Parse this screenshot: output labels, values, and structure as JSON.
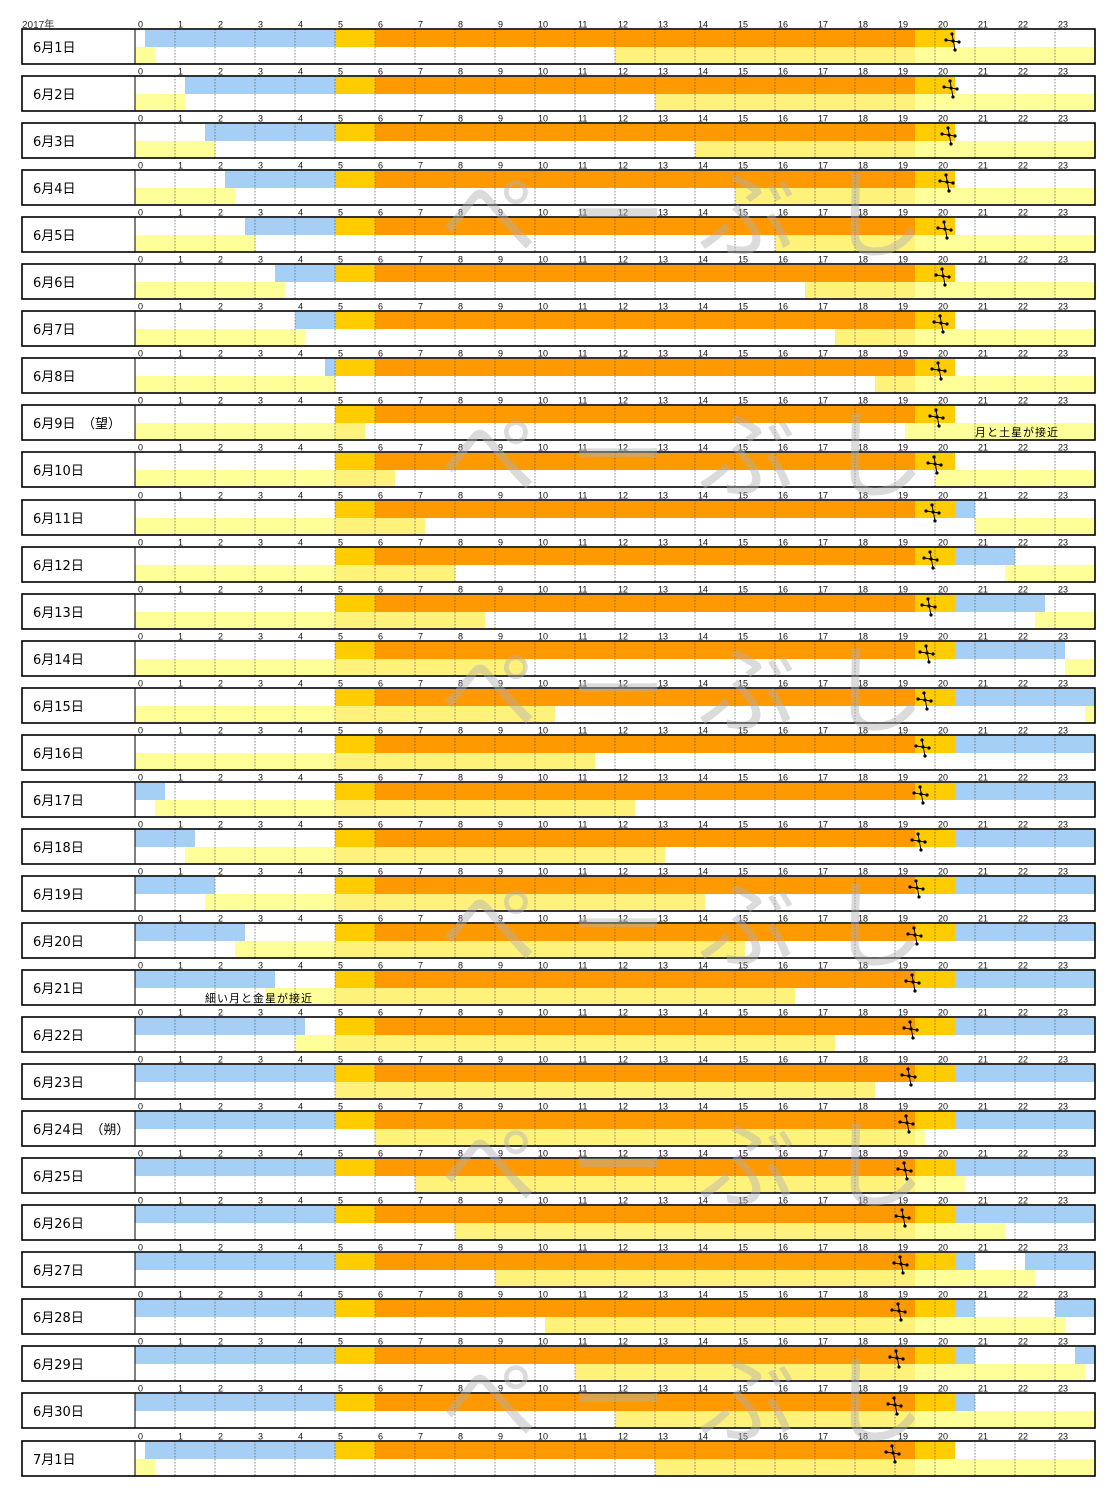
{
  "header": {
    "year_label": "2017年"
  },
  "watermark": {
    "text": "ぺ ー ぶ し"
  },
  "colors": {
    "night_blue": "#a6cff5",
    "twilight_gold": "#ffcc00",
    "day_orange": "#ff9900",
    "moon_yellow": "#ffff99",
    "frame": "#000000",
    "grid_dotted": "#555555"
  },
  "chart_data": {
    "type": "timeline",
    "title": "",
    "x_unit": "hour",
    "xlim": [
      0,
      24
    ],
    "hour_ticks": [
      "0",
      "1",
      "2",
      "3",
      "4",
      "5",
      "6",
      "7",
      "8",
      "9",
      "10",
      "11",
      "12",
      "13",
      "14",
      "15",
      "16",
      "17",
      "18",
      "19",
      "20",
      "21",
      "22",
      "23"
    ],
    "legend": [],
    "days": [
      {
        "label": "6月1日",
        "night": [
          [
            0.25,
            5
          ]
        ],
        "twilight": [
          [
            5,
            6
          ],
          [
            19.5,
            20.5
          ]
        ],
        "day": [
          [
            6,
            19.5
          ]
        ],
        "moon": [
          [
            0,
            0.5
          ],
          [
            12,
            24
          ]
        ],
        "moon_day": [
          [
            12,
            19.5
          ]
        ],
        "saturn": 20.45
      },
      {
        "label": "6月2日",
        "night": [
          [
            1.25,
            5
          ]
        ],
        "twilight": [
          [
            5,
            6
          ],
          [
            19.5,
            20.5
          ]
        ],
        "day": [
          [
            6,
            19.5
          ]
        ],
        "moon": [
          [
            0,
            1.25
          ],
          [
            13,
            24
          ]
        ],
        "moon_day": [
          [
            13,
            19.5
          ]
        ],
        "saturn": 20.4
      },
      {
        "label": "6月3日",
        "night": [
          [
            1.75,
            5
          ]
        ],
        "twilight": [
          [
            5,
            6
          ],
          [
            19.5,
            20.5
          ]
        ],
        "day": [
          [
            6,
            19.5
          ]
        ],
        "moon": [
          [
            0,
            2
          ],
          [
            14,
            24
          ]
        ],
        "moon_day": [
          [
            14,
            19.5
          ]
        ],
        "saturn": 20.35
      },
      {
        "label": "6月4日",
        "night": [
          [
            2.25,
            5
          ]
        ],
        "twilight": [
          [
            5,
            6
          ],
          [
            19.5,
            20.5
          ]
        ],
        "day": [
          [
            6,
            19.5
          ]
        ],
        "moon": [
          [
            0,
            2.5
          ],
          [
            15,
            24
          ]
        ],
        "moon_day": [
          [
            15,
            19.5
          ]
        ],
        "saturn": 20.3
      },
      {
        "label": "6月5日",
        "night": [
          [
            2.75,
            5
          ]
        ],
        "twilight": [
          [
            5,
            6
          ],
          [
            19.5,
            20.5
          ]
        ],
        "day": [
          [
            6,
            19.5
          ]
        ],
        "moon": [
          [
            0,
            3
          ],
          [
            16,
            24
          ]
        ],
        "moon_day": [
          [
            16,
            19.5
          ]
        ],
        "saturn": 20.25
      },
      {
        "label": "6月6日",
        "night": [
          [
            3.5,
            5
          ]
        ],
        "twilight": [
          [
            5,
            6
          ],
          [
            19.5,
            20.5
          ]
        ],
        "day": [
          [
            6,
            19.5
          ]
        ],
        "moon": [
          [
            0,
            3.75
          ],
          [
            16.75,
            24
          ]
        ],
        "moon_day": [
          [
            16.75,
            19.5
          ]
        ],
        "saturn": 20.2
      },
      {
        "label": "6月7日",
        "night": [
          [
            4,
            5
          ]
        ],
        "twilight": [
          [
            5,
            6
          ],
          [
            19.5,
            20.5
          ]
        ],
        "day": [
          [
            6,
            19.5
          ]
        ],
        "moon": [
          [
            0,
            4.25
          ],
          [
            17.5,
            24
          ]
        ],
        "moon_day": [
          [
            17.5,
            19.5
          ]
        ],
        "saturn": 20.15
      },
      {
        "label": "6月8日",
        "night": [
          [
            4.75,
            5
          ]
        ],
        "twilight": [
          [
            5,
            6
          ],
          [
            19.5,
            20.5
          ]
        ],
        "day": [
          [
            6,
            19.5
          ]
        ],
        "moon": [
          [
            0,
            5
          ],
          [
            18.5,
            24
          ]
        ],
        "moon_day": [
          [
            18.5,
            19.5
          ]
        ],
        "saturn": 20.1
      },
      {
        "label": "6月9日　（望）",
        "night": [],
        "twilight": [
          [
            5,
            6
          ],
          [
            19.5,
            20.5
          ]
        ],
        "day": [
          [
            6,
            19.5
          ]
        ],
        "moon": [
          [
            0,
            5.75
          ],
          [
            19.25,
            24
          ]
        ],
        "moon_day": [
          [
            5,
            5.75
          ]
        ],
        "saturn": 20.05,
        "note": "月と土星が接近"
      },
      {
        "label": "6月10日",
        "night": [],
        "twilight": [
          [
            5,
            6
          ],
          [
            19.5,
            20.5
          ]
        ],
        "day": [
          [
            6,
            19.5
          ]
        ],
        "moon": [
          [
            0,
            6.5
          ],
          [
            20,
            24
          ]
        ],
        "moon_day": [
          [
            5,
            6.5
          ]
        ],
        "saturn": 20.0
      },
      {
        "label": "6月11日",
        "night": [
          [
            20.5,
            21
          ]
        ],
        "twilight": [
          [
            5,
            6
          ],
          [
            19.5,
            20.5
          ]
        ],
        "day": [
          [
            6,
            19.5
          ]
        ],
        "moon": [
          [
            0,
            7.25
          ],
          [
            21,
            24
          ]
        ],
        "moon_day": [
          [
            5,
            7.25
          ]
        ],
        "saturn": 19.95
      },
      {
        "label": "6月12日",
        "night": [
          [
            20.5,
            22
          ]
        ],
        "twilight": [
          [
            5,
            6
          ],
          [
            19.5,
            20.5
          ]
        ],
        "day": [
          [
            6,
            19.5
          ]
        ],
        "moon": [
          [
            0,
            8
          ],
          [
            21.75,
            24
          ]
        ],
        "moon_day": [
          [
            5,
            8
          ]
        ],
        "saturn": 19.9
      },
      {
        "label": "6月13日",
        "night": [
          [
            20.5,
            22.75
          ]
        ],
        "twilight": [
          [
            5,
            6
          ],
          [
            19.5,
            20.5
          ]
        ],
        "day": [
          [
            6,
            19.5
          ]
        ],
        "moon": [
          [
            0,
            8.75
          ],
          [
            22.5,
            24
          ]
        ],
        "moon_day": [
          [
            5,
            8.75
          ]
        ],
        "saturn": 19.85
      },
      {
        "label": "6月14日",
        "night": [
          [
            20.5,
            23.25
          ]
        ],
        "twilight": [
          [
            5,
            6
          ],
          [
            19.5,
            20.5
          ]
        ],
        "day": [
          [
            6,
            19.5
          ]
        ],
        "moon": [
          [
            0,
            9.75
          ],
          [
            23.25,
            24
          ]
        ],
        "moon_day": [
          [
            5,
            9.75
          ]
        ],
        "saturn": 19.8
      },
      {
        "label": "6月15日",
        "night": [
          [
            20.5,
            24
          ]
        ],
        "twilight": [
          [
            5,
            6
          ],
          [
            19.5,
            20.5
          ]
        ],
        "day": [
          [
            6,
            19.5
          ]
        ],
        "moon": [
          [
            0,
            10.5
          ],
          [
            23.75,
            24
          ]
        ],
        "moon_day": [
          [
            5,
            10.5
          ]
        ],
        "saturn": 19.75
      },
      {
        "label": "6月16日",
        "night": [
          [
            20.5,
            24
          ]
        ],
        "twilight": [
          [
            5,
            6
          ],
          [
            19.5,
            20.5
          ]
        ],
        "day": [
          [
            6,
            19.5
          ]
        ],
        "moon": [
          [
            0,
            11.5
          ]
        ],
        "moon_day": [
          [
            5,
            11.5
          ]
        ],
        "saturn": 19.7
      },
      {
        "label": "6月17日",
        "night": [
          [
            0,
            0.75
          ],
          [
            20.5,
            24
          ]
        ],
        "twilight": [
          [
            5,
            6
          ],
          [
            19.5,
            20.5
          ]
        ],
        "day": [
          [
            6,
            19.5
          ]
        ],
        "moon": [
          [
            0.5,
            12.5
          ]
        ],
        "moon_day": [
          [
            5,
            12.5
          ]
        ],
        "saturn": 19.65
      },
      {
        "label": "6月18日",
        "night": [
          [
            0,
            1.5
          ],
          [
            20.5,
            24
          ]
        ],
        "twilight": [
          [
            5,
            6
          ],
          [
            19.5,
            20.5
          ]
        ],
        "day": [
          [
            6,
            19.5
          ]
        ],
        "moon": [
          [
            1.25,
            13.25
          ]
        ],
        "moon_day": [
          [
            5,
            13.25
          ]
        ],
        "saturn": 19.6
      },
      {
        "label": "6月19日",
        "night": [
          [
            0,
            2
          ],
          [
            20.5,
            24
          ]
        ],
        "twilight": [
          [
            5,
            6
          ],
          [
            19.5,
            20.5
          ]
        ],
        "day": [
          [
            6,
            19.5
          ]
        ],
        "moon": [
          [
            1.75,
            14.25
          ]
        ],
        "moon_day": [
          [
            5,
            14.25
          ]
        ],
        "saturn": 19.55
      },
      {
        "label": "6月20日",
        "night": [
          [
            0,
            2.75
          ],
          [
            20.5,
            24
          ]
        ],
        "twilight": [
          [
            5,
            6
          ],
          [
            19.5,
            20.5
          ]
        ],
        "day": [
          [
            6,
            19.5
          ]
        ],
        "moon": [
          [
            2.5,
            15.25
          ]
        ],
        "moon_day": [
          [
            5,
            15.25
          ]
        ],
        "saturn": 19.5
      },
      {
        "label": "6月21日",
        "night": [
          [
            0,
            3.5
          ],
          [
            20.5,
            24
          ]
        ],
        "twilight": [
          [
            5,
            6
          ],
          [
            19.5,
            20.5
          ]
        ],
        "day": [
          [
            6,
            19.5
          ]
        ],
        "moon": [
          [
            3.25,
            16.5
          ]
        ],
        "moon_day": [
          [
            5,
            16.5
          ]
        ],
        "saturn": 19.45,
        "note": "細い月と金星が接近"
      },
      {
        "label": "6月22日",
        "night": [
          [
            0,
            4.25
          ],
          [
            20.5,
            24
          ]
        ],
        "twilight": [
          [
            5,
            6
          ],
          [
            19.5,
            20.5
          ]
        ],
        "day": [
          [
            6,
            19.5
          ]
        ],
        "moon": [
          [
            4,
            17.5
          ]
        ],
        "moon_day": [
          [
            5,
            17.5
          ]
        ],
        "saturn": 19.4
      },
      {
        "label": "6月23日",
        "night": [
          [
            0,
            5
          ],
          [
            20.5,
            24
          ]
        ],
        "twilight": [
          [
            5,
            6
          ],
          [
            19.5,
            20.5
          ]
        ],
        "day": [
          [
            6,
            19.5
          ]
        ],
        "moon": [
          [
            5,
            18.5
          ]
        ],
        "moon_day": [
          [
            5,
            18.5
          ]
        ],
        "saturn": 19.35
      },
      {
        "label": "6月24日　（朔）",
        "night": [
          [
            0,
            5
          ],
          [
            20.5,
            24
          ]
        ],
        "twilight": [
          [
            5,
            6
          ],
          [
            19.5,
            20.5
          ]
        ],
        "day": [
          [
            6,
            19.5
          ]
        ],
        "moon": [
          [
            6,
            19.75
          ]
        ],
        "moon_day": [
          [
            6,
            19.5
          ]
        ],
        "saturn": 19.3
      },
      {
        "label": "6月25日",
        "night": [
          [
            0,
            5
          ],
          [
            20.5,
            24
          ]
        ],
        "twilight": [
          [
            5,
            6
          ],
          [
            19.5,
            20.5
          ]
        ],
        "day": [
          [
            6,
            19.5
          ]
        ],
        "moon": [
          [
            7,
            20.75
          ]
        ],
        "moon_day": [
          [
            7,
            19.5
          ]
        ],
        "saturn": 19.25
      },
      {
        "label": "6月26日",
        "night": [
          [
            0,
            5
          ],
          [
            20.5,
            21.5
          ],
          [
            21.5,
            24
          ]
        ],
        "twilight": [
          [
            5,
            6
          ],
          [
            19.5,
            20.5
          ]
        ],
        "day": [
          [
            6,
            19.5
          ]
        ],
        "moon": [
          [
            8,
            21.75
          ]
        ],
        "moon_day": [
          [
            8,
            19.5
          ]
        ],
        "saturn": 19.2
      },
      {
        "label": "6月27日",
        "night": [
          [
            0,
            5
          ],
          [
            20.5,
            21
          ],
          [
            22.25,
            24
          ]
        ],
        "twilight": [
          [
            5,
            6
          ],
          [
            19.5,
            20.5
          ]
        ],
        "day": [
          [
            6,
            19.5
          ]
        ],
        "moon": [
          [
            9,
            22.5
          ]
        ],
        "moon_day": [
          [
            9,
            19.5
          ]
        ],
        "saturn": 19.15
      },
      {
        "label": "6月28日",
        "night": [
          [
            0,
            5
          ],
          [
            20.5,
            21
          ],
          [
            23,
            24
          ]
        ],
        "twilight": [
          [
            5,
            6
          ],
          [
            19.5,
            20.5
          ]
        ],
        "day": [
          [
            6,
            19.5
          ]
        ],
        "moon": [
          [
            10.25,
            23.25
          ]
        ],
        "moon_day": [
          [
            10.25,
            19.5
          ]
        ],
        "saturn": 19.1
      },
      {
        "label": "6月29日",
        "night": [
          [
            0,
            5
          ],
          [
            20.5,
            21
          ],
          [
            23.5,
            24
          ]
        ],
        "twilight": [
          [
            5,
            6
          ],
          [
            19.5,
            20.5
          ]
        ],
        "day": [
          [
            6,
            19.5
          ]
        ],
        "moon": [
          [
            11,
            23.75
          ]
        ],
        "moon_day": [
          [
            11,
            19.5
          ]
        ],
        "saturn": 19.05
      },
      {
        "label": "6月30日",
        "night": [
          [
            0,
            5
          ],
          [
            20.5,
            21
          ]
        ],
        "twilight": [
          [
            5,
            6
          ],
          [
            19.5,
            20.5
          ]
        ],
        "day": [
          [
            6,
            19.5
          ]
        ],
        "moon": [
          [
            12,
            24
          ]
        ],
        "moon_day": [
          [
            12,
            19.5
          ]
        ],
        "saturn": 19.0
      },
      {
        "label": "7月1日",
        "night": [
          [
            0.25,
            5
          ]
        ],
        "twilight": [
          [
            5,
            6
          ],
          [
            19.5,
            20.5
          ]
        ],
        "day": [
          [
            6,
            19.5
          ]
        ],
        "moon": [
          [
            0,
            0.5
          ],
          [
            13,
            24
          ]
        ],
        "moon_day": [
          [
            13,
            19.5
          ]
        ],
        "saturn": 18.95
      }
    ]
  }
}
